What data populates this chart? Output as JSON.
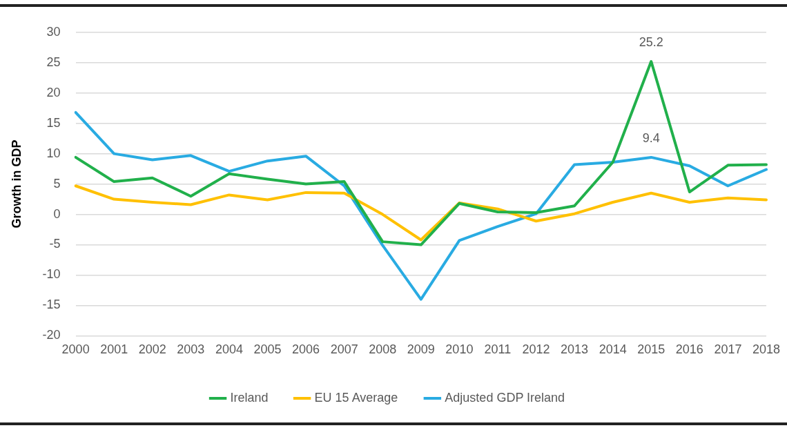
{
  "chart_data": {
    "type": "line",
    "ylabel": "Growth in GDP",
    "categories": [
      "2000",
      "2001",
      "2002",
      "2003",
      "2004",
      "2005",
      "2006",
      "2007",
      "2008",
      "2009",
      "2010",
      "2011",
      "2012",
      "2013",
      "2014",
      "2015",
      "2016",
      "2017",
      "2018"
    ],
    "series": [
      {
        "name": "Ireland",
        "color": "#21b04b",
        "values": [
          9.4,
          5.4,
          6.0,
          3.0,
          6.7,
          5.8,
          5.0,
          5.4,
          -4.5,
          -5.0,
          1.8,
          0.4,
          0.3,
          1.4,
          8.6,
          25.2,
          3.7,
          8.1,
          8.2
        ]
      },
      {
        "name": "EU 15 Average",
        "color": "#ffc000",
        "values": [
          4.7,
          2.5,
          2.0,
          1.6,
          3.2,
          2.4,
          3.6,
          3.5,
          0.0,
          -4.2,
          1.9,
          0.9,
          -1.1,
          0.1,
          2.0,
          3.5,
          2.0,
          2.7,
          2.4
        ]
      },
      {
        "name": "Adjusted GDP Ireland",
        "color": "#29abe2",
        "values": [
          16.8,
          10.0,
          9.0,
          9.7,
          7.1,
          8.8,
          9.6,
          4.7,
          -5.1,
          -14.0,
          -4.3,
          -2.0,
          0.1,
          8.2,
          8.6,
          9.4,
          8.0,
          4.7,
          7.4
        ]
      }
    ],
    "ylim": [
      -20,
      30
    ],
    "yticks": [
      -20,
      -15,
      -10,
      -5,
      0,
      5,
      10,
      15,
      20,
      25,
      30
    ],
    "annotations": [
      {
        "text": "25.2",
        "x": "2015",
        "y": 25.2
      },
      {
        "text": "9.4",
        "x": "2015",
        "y": 9.4
      }
    ],
    "grid": "y",
    "legend": "bottom",
    "marker": "none",
    "line_style": "solid"
  }
}
